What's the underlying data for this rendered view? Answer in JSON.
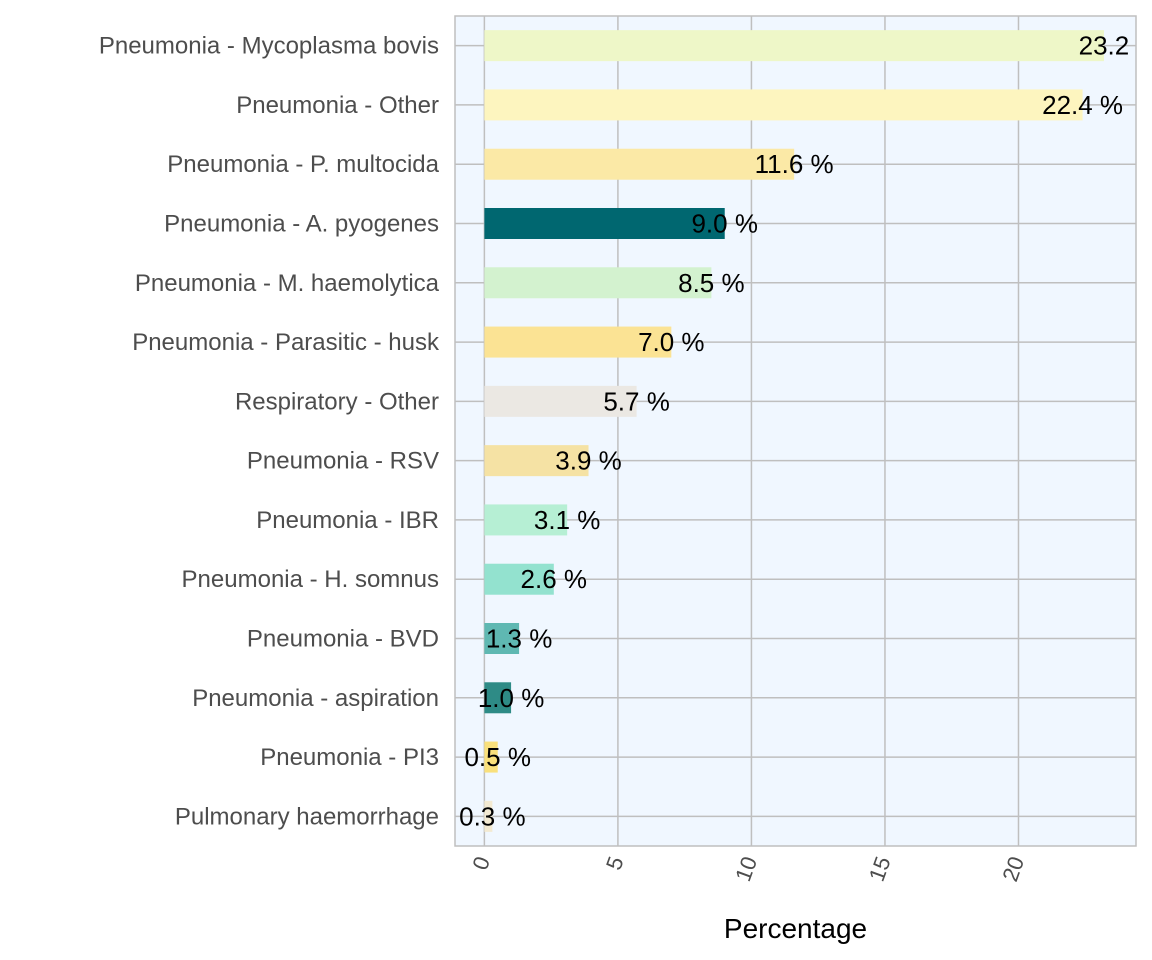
{
  "chart_data": {
    "type": "bar",
    "orientation": "horizontal",
    "categories": [
      "Pneumonia - Mycoplasma bovis",
      "Pneumonia - Other",
      "Pneumonia - P. multocida",
      "Pneumonia - A. pyogenes",
      "Pneumonia - M. haemolytica",
      "Pneumonia - Parasitic - husk",
      "Respiratory - Other",
      "Pneumonia - RSV",
      "Pneumonia - IBR",
      "Pneumonia - H. somnus",
      "Pneumonia - BVD",
      "Pneumonia - aspiration",
      "Pneumonia - PI3",
      "Pulmonary haemorrhage"
    ],
    "values": [
      23.2,
      22.4,
      11.6,
      9.0,
      8.5,
      7.0,
      5.7,
      3.9,
      3.1,
      2.6,
      1.3,
      1.0,
      0.5,
      0.3
    ],
    "value_labels": [
      "23.2",
      "22.4 %",
      "11.6 %",
      "9.0 %",
      "8.5 %",
      "7.0 %",
      "5.7 %",
      "3.9 %",
      "3.1 %",
      "2.6 %",
      "1.3 %",
      "1.0 %",
      "0.5 %",
      "0.3 %"
    ],
    "colors": [
      "#eef7c8",
      "#fdf5bf",
      "#fbe9a6",
      "#006770",
      "#d3f2cf",
      "#fbe394",
      "#ebe8e3",
      "#f5e2a4",
      "#b6efd4",
      "#93e2cf",
      "#5fb8b2",
      "#2e8b86",
      "#f9e07c",
      "#f3ead2"
    ],
    "xlabel": "Percentage",
    "ylabel": "",
    "xlim": [
      -1.1,
      24.4
    ],
    "xticks": [
      0,
      5,
      10,
      15,
      20
    ],
    "xtick_labels": [
      "0",
      "5",
      "10",
      "15",
      "20"
    ],
    "tick_label_rotation": -70,
    "grid": true,
    "panel_background": "#f0f7ff",
    "grid_color": "#bfbfbf"
  }
}
